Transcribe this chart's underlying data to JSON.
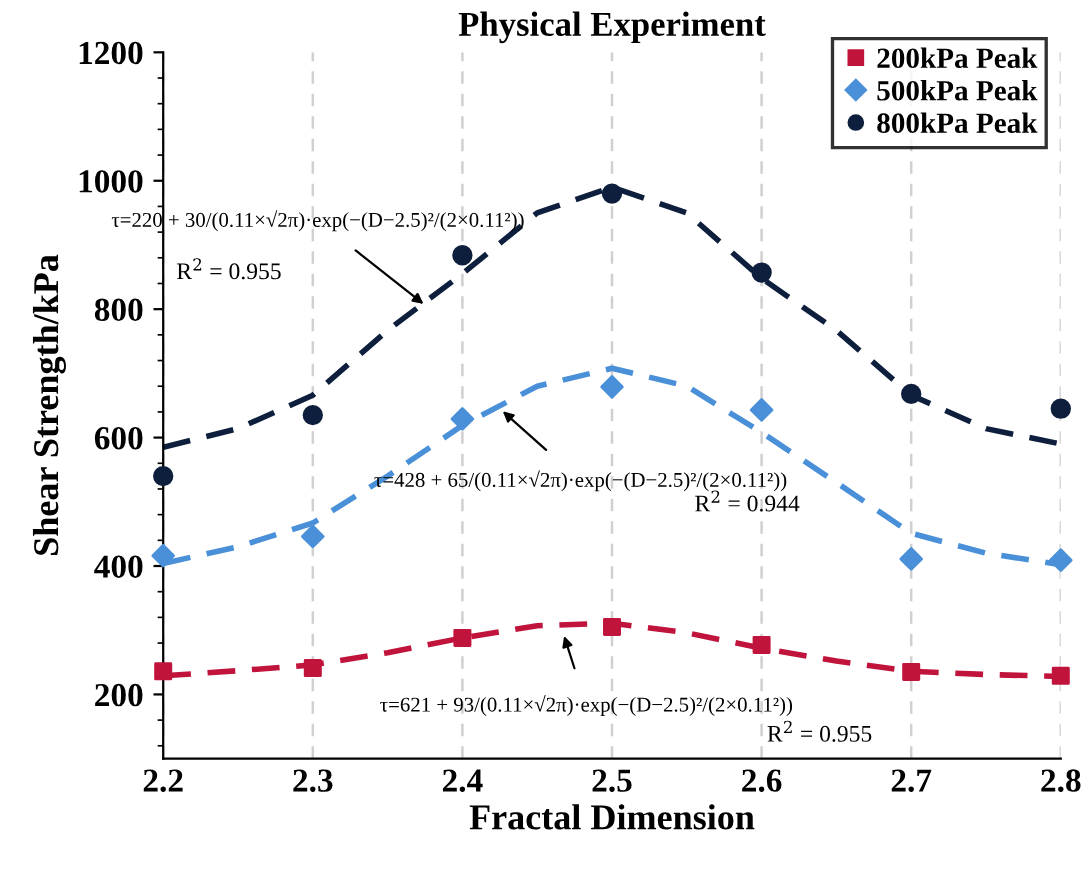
{
  "chart_data": {
    "type": "scatter",
    "title": "Physical Experiment",
    "xlabel": "Fractal Dimension",
    "ylabel": "Shear Strength/kPa",
    "x": [
      2.2,
      2.3,
      2.4,
      2.5,
      2.6,
      2.7,
      2.8
    ],
    "series": [
      {
        "name": "200kPa Peak",
        "marker": "square",
        "color": "#c0143c",
        "values": [
          236,
          241,
          288,
          305,
          277,
          235,
          229
        ]
      },
      {
        "name": "500kPa Peak",
        "marker": "diamond",
        "color": "#4a90d9",
        "values": [
          416,
          446,
          629,
          679,
          643,
          411,
          409
        ]
      },
      {
        "name": "800kPa Peak",
        "marker": "circle",
        "color": "#0d1f3c",
        "values": [
          540,
          635,
          884,
          980,
          857,
          668,
          645
        ]
      },
      {
        "type": "line",
        "line_style": "dashed",
        "color": "#c0143c",
        "x": [
          2.2,
          2.25,
          2.3,
          2.35,
          2.4,
          2.45,
          2.5,
          2.55,
          2.6,
          2.65,
          2.7,
          2.75,
          2.8
        ],
        "values": [
          229,
          237,
          246,
          265,
          288,
          307,
          311,
          296,
          272,
          252,
          236,
          231,
          228
        ]
      },
      {
        "type": "line",
        "line_style": "dashed",
        "color": "#4a90d9",
        "x": [
          2.2,
          2.25,
          2.3,
          2.35,
          2.4,
          2.45,
          2.5,
          2.55,
          2.6,
          2.65,
          2.7,
          2.75,
          2.8
        ],
        "values": [
          404,
          430,
          467,
          540,
          619,
          680,
          708,
          680,
          608,
          530,
          451,
          420,
          402
        ]
      },
      {
        "type": "line",
        "line_style": "dashed",
        "color": "#0d1f3c",
        "x": [
          2.2,
          2.25,
          2.3,
          2.35,
          2.4,
          2.45,
          2.5,
          2.55,
          2.6,
          2.65,
          2.7,
          2.75,
          2.8
        ],
        "values": [
          585,
          614,
          666,
          767,
          855,
          950,
          990,
          950,
          848,
          767,
          666,
          614,
          590
        ]
      }
    ],
    "xlim": [
      2.2,
      2.8
    ],
    "xticks": [
      2.2,
      2.3,
      2.4,
      2.5,
      2.6,
      2.7,
      2.8
    ],
    "ylim": [
      100,
      1200
    ],
    "yticks": [
      200,
      400,
      600,
      800,
      1000,
      1200
    ],
    "grid": "x",
    "legend": "top right",
    "annotations": [
      {
        "text": "τ=220 + 30/(0.11×√2π)·exp(−(D−2.5)²/(2×0.11²))",
        "x": 2.374,
        "y": 808
      },
      "R$^{2}$ = 0.955",
      {
        "text": "τ=428 + 65/(0.11×√2π)·exp(−(D−2.5)²/(2×0.11²))",
        "x": 2.427,
        "y": 641
      },
      "R$^{2}$ = 0.944",
      {
        "text": "τ=621 + 93/(0.11×√2π)·exp(−(D−2.5)²/(2×0.11²))",
        "x": 2.468,
        "y": 291
      },
      "R$^{2}$ = 0.955"
    ]
  }
}
